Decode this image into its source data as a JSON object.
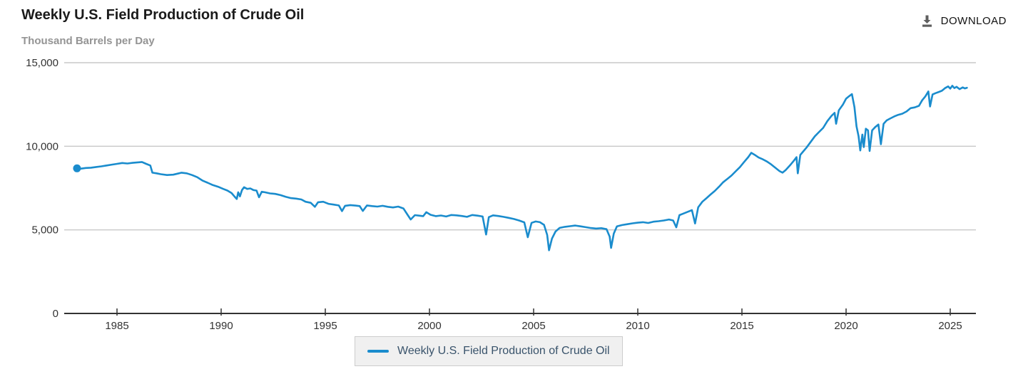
{
  "page": {
    "title": "Weekly U.S. Field Production of Crude Oil",
    "subtitle": "Thousand Barrels per Day",
    "download_label": "DOWNLOAD"
  },
  "legend": {
    "label": "Weekly U.S. Field Production of Crude Oil"
  },
  "colors": {
    "line": "#1a8ccd",
    "grid": "#c9c9c9",
    "axis": "#333333",
    "tick_label": "#333333",
    "title": "#1a1a1a",
    "subtitle": "#949494",
    "legend_text": "#39536b",
    "legend_bg": "#f0f0f0",
    "legend_border": "#cccccc",
    "download_icon": "#5f5f5f"
  },
  "chart_data": {
    "type": "line",
    "title": "Weekly U.S. Field Production of Crude Oil",
    "ylabel": "Thousand Barrels per Day",
    "grid": true,
    "legend_position": "bottom",
    "x_axis": {
      "min": 1982.47,
      "max": 2026.2,
      "ticks": [
        1985,
        1990,
        1995,
        2000,
        2005,
        2010,
        2015,
        2020,
        2025
      ]
    },
    "y_axis": {
      "min": 0,
      "max": 15000,
      "ticks": [
        0,
        5000,
        10000,
        15000
      ],
      "tick_labels": [
        "0",
        "5,000",
        "10,000",
        "15,000"
      ]
    },
    "series": [
      {
        "name": "Weekly U.S. Field Production of Crude Oil",
        "first_point_marker": true,
        "points": [
          [
            1983.08,
            8680
          ],
          [
            1983.25,
            8660
          ],
          [
            1983.5,
            8700
          ],
          [
            1983.75,
            8720
          ],
          [
            1984.0,
            8760
          ],
          [
            1984.25,
            8800
          ],
          [
            1984.5,
            8850
          ],
          [
            1984.75,
            8900
          ],
          [
            1985.0,
            8950
          ],
          [
            1985.25,
            9000
          ],
          [
            1985.5,
            8970
          ],
          [
            1985.75,
            9010
          ],
          [
            1986.0,
            9040
          ],
          [
            1986.2,
            9060
          ],
          [
            1986.4,
            8950
          ],
          [
            1986.6,
            8850
          ],
          [
            1986.7,
            8420
          ],
          [
            1986.9,
            8380
          ],
          [
            1987.1,
            8330
          ],
          [
            1987.4,
            8280
          ],
          [
            1987.7,
            8300
          ],
          [
            1987.9,
            8360
          ],
          [
            1988.1,
            8420
          ],
          [
            1988.35,
            8380
          ],
          [
            1988.6,
            8280
          ],
          [
            1988.85,
            8150
          ],
          [
            1989.1,
            7950
          ],
          [
            1989.35,
            7820
          ],
          [
            1989.6,
            7680
          ],
          [
            1989.85,
            7580
          ],
          [
            1990.1,
            7450
          ],
          [
            1990.3,
            7350
          ],
          [
            1990.5,
            7200
          ],
          [
            1990.65,
            6980
          ],
          [
            1990.75,
            6850
          ],
          [
            1990.82,
            7250
          ],
          [
            1990.9,
            7000
          ],
          [
            1991.0,
            7380
          ],
          [
            1991.1,
            7550
          ],
          [
            1991.25,
            7450
          ],
          [
            1991.4,
            7480
          ],
          [
            1991.55,
            7380
          ],
          [
            1991.7,
            7350
          ],
          [
            1991.82,
            6950
          ],
          [
            1991.95,
            7280
          ],
          [
            1992.1,
            7250
          ],
          [
            1992.35,
            7180
          ],
          [
            1992.6,
            7150
          ],
          [
            1992.85,
            7080
          ],
          [
            1993.1,
            6980
          ],
          [
            1993.35,
            6900
          ],
          [
            1993.6,
            6870
          ],
          [
            1993.85,
            6820
          ],
          [
            1994.05,
            6680
          ],
          [
            1994.3,
            6620
          ],
          [
            1994.5,
            6380
          ],
          [
            1994.65,
            6650
          ],
          [
            1994.9,
            6680
          ],
          [
            1995.15,
            6560
          ],
          [
            1995.4,
            6510
          ],
          [
            1995.65,
            6460
          ],
          [
            1995.8,
            6120
          ],
          [
            1995.95,
            6440
          ],
          [
            1996.2,
            6480
          ],
          [
            1996.45,
            6450
          ],
          [
            1996.65,
            6420
          ],
          [
            1996.8,
            6130
          ],
          [
            1997.0,
            6460
          ],
          [
            1997.25,
            6420
          ],
          [
            1997.5,
            6390
          ],
          [
            1997.75,
            6440
          ],
          [
            1998.0,
            6380
          ],
          [
            1998.25,
            6340
          ],
          [
            1998.5,
            6390
          ],
          [
            1998.75,
            6280
          ],
          [
            1998.95,
            5900
          ],
          [
            1999.1,
            5620
          ],
          [
            1999.3,
            5880
          ],
          [
            1999.5,
            5850
          ],
          [
            1999.7,
            5820
          ],
          [
            1999.85,
            6060
          ],
          [
            2000.05,
            5900
          ],
          [
            2000.3,
            5820
          ],
          [
            2000.55,
            5860
          ],
          [
            2000.8,
            5800
          ],
          [
            2001.05,
            5890
          ],
          [
            2001.3,
            5870
          ],
          [
            2001.55,
            5830
          ],
          [
            2001.8,
            5780
          ],
          [
            2002.05,
            5890
          ],
          [
            2002.3,
            5850
          ],
          [
            2002.55,
            5800
          ],
          [
            2002.72,
            4720
          ],
          [
            2002.85,
            5760
          ],
          [
            2003.05,
            5870
          ],
          [
            2003.3,
            5830
          ],
          [
            2003.55,
            5780
          ],
          [
            2003.8,
            5720
          ],
          [
            2004.05,
            5650
          ],
          [
            2004.3,
            5560
          ],
          [
            2004.55,
            5450
          ],
          [
            2004.72,
            4560
          ],
          [
            2004.9,
            5420
          ],
          [
            2005.1,
            5500
          ],
          [
            2005.3,
            5460
          ],
          [
            2005.5,
            5300
          ],
          [
            2005.65,
            4700
          ],
          [
            2005.74,
            3780
          ],
          [
            2005.88,
            4480
          ],
          [
            2006.05,
            4900
          ],
          [
            2006.25,
            5120
          ],
          [
            2006.5,
            5180
          ],
          [
            2006.75,
            5220
          ],
          [
            2007.0,
            5260
          ],
          [
            2007.25,
            5210
          ],
          [
            2007.5,
            5160
          ],
          [
            2007.75,
            5110
          ],
          [
            2008.0,
            5080
          ],
          [
            2008.25,
            5100
          ],
          [
            2008.5,
            5040
          ],
          [
            2008.65,
            4600
          ],
          [
            2008.72,
            3920
          ],
          [
            2008.85,
            4780
          ],
          [
            2009.0,
            5210
          ],
          [
            2009.25,
            5290
          ],
          [
            2009.5,
            5340
          ],
          [
            2009.75,
            5390
          ],
          [
            2010.0,
            5430
          ],
          [
            2010.25,
            5460
          ],
          [
            2010.5,
            5410
          ],
          [
            2010.75,
            5490
          ],
          [
            2011.0,
            5520
          ],
          [
            2011.25,
            5560
          ],
          [
            2011.5,
            5620
          ],
          [
            2011.7,
            5560
          ],
          [
            2011.85,
            5150
          ],
          [
            2012.0,
            5880
          ],
          [
            2012.2,
            5980
          ],
          [
            2012.4,
            6080
          ],
          [
            2012.6,
            6180
          ],
          [
            2012.75,
            5380
          ],
          [
            2012.9,
            6350
          ],
          [
            2013.1,
            6680
          ],
          [
            2013.3,
            6900
          ],
          [
            2013.5,
            7120
          ],
          [
            2013.7,
            7330
          ],
          [
            2013.9,
            7580
          ],
          [
            2014.1,
            7850
          ],
          [
            2014.3,
            8050
          ],
          [
            2014.5,
            8250
          ],
          [
            2014.7,
            8500
          ],
          [
            2014.9,
            8750
          ],
          [
            2015.1,
            9050
          ],
          [
            2015.3,
            9350
          ],
          [
            2015.45,
            9610
          ],
          [
            2015.6,
            9500
          ],
          [
            2015.8,
            9330
          ],
          [
            2016.0,
            9220
          ],
          [
            2016.2,
            9090
          ],
          [
            2016.4,
            8920
          ],
          [
            2016.6,
            8720
          ],
          [
            2016.8,
            8520
          ],
          [
            2016.95,
            8420
          ],
          [
            2017.1,
            8580
          ],
          [
            2017.3,
            8850
          ],
          [
            2017.5,
            9150
          ],
          [
            2017.62,
            9350
          ],
          [
            2017.68,
            8380
          ],
          [
            2017.8,
            9480
          ],
          [
            2017.95,
            9700
          ],
          [
            2018.1,
            9920
          ],
          [
            2018.3,
            10260
          ],
          [
            2018.5,
            10600
          ],
          [
            2018.7,
            10850
          ],
          [
            2018.9,
            11100
          ],
          [
            2019.1,
            11500
          ],
          [
            2019.3,
            11820
          ],
          [
            2019.45,
            12000
          ],
          [
            2019.52,
            11350
          ],
          [
            2019.65,
            12150
          ],
          [
            2019.85,
            12500
          ],
          [
            2020.0,
            12850
          ],
          [
            2020.15,
            13000
          ],
          [
            2020.28,
            13120
          ],
          [
            2020.4,
            12350
          ],
          [
            2020.5,
            11200
          ],
          [
            2020.6,
            10600
          ],
          [
            2020.68,
            9750
          ],
          [
            2020.78,
            10700
          ],
          [
            2020.85,
            9950
          ],
          [
            2020.95,
            11050
          ],
          [
            2021.05,
            10950
          ],
          [
            2021.13,
            9720
          ],
          [
            2021.25,
            10950
          ],
          [
            2021.4,
            11150
          ],
          [
            2021.55,
            11300
          ],
          [
            2021.67,
            10120
          ],
          [
            2021.8,
            11350
          ],
          [
            2021.95,
            11550
          ],
          [
            2022.1,
            11650
          ],
          [
            2022.3,
            11780
          ],
          [
            2022.5,
            11880
          ],
          [
            2022.7,
            11950
          ],
          [
            2022.9,
            12080
          ],
          [
            2023.1,
            12280
          ],
          [
            2023.3,
            12330
          ],
          [
            2023.5,
            12420
          ],
          [
            2023.65,
            12750
          ],
          [
            2023.8,
            12980
          ],
          [
            2023.95,
            13280
          ],
          [
            2024.03,
            12380
          ],
          [
            2024.15,
            13100
          ],
          [
            2024.3,
            13180
          ],
          [
            2024.45,
            13250
          ],
          [
            2024.6,
            13320
          ],
          [
            2024.75,
            13480
          ],
          [
            2024.9,
            13580
          ],
          [
            2025.0,
            13450
          ],
          [
            2025.1,
            13620
          ],
          [
            2025.2,
            13480
          ],
          [
            2025.3,
            13560
          ],
          [
            2025.45,
            13420
          ],
          [
            2025.6,
            13520
          ],
          [
            2025.7,
            13460
          ],
          [
            2025.8,
            13500
          ]
        ]
      }
    ]
  }
}
